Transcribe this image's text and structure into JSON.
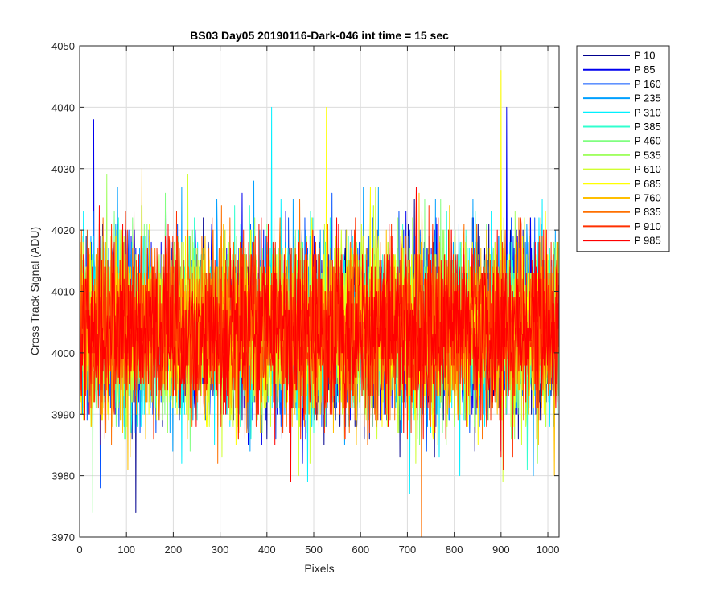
{
  "chart_data": {
    "type": "line",
    "title": "BS03 Day05 20190116-Dark-046 int time = 15 sec",
    "xlabel": "Pixels",
    "ylabel": "Cross Track Signal (ADU)",
    "xlim": [
      0,
      1024
    ],
    "ylim": [
      3970,
      4050
    ],
    "xticks": [
      0,
      100,
      200,
      300,
      400,
      500,
      600,
      700,
      800,
      900,
      1000
    ],
    "yticks": [
      3970,
      3980,
      3990,
      4000,
      4010,
      4020,
      4030,
      4040,
      4050
    ],
    "grid": true,
    "legend_position": "outside-top-right",
    "series_mean": 4004,
    "series_range_typical": [
      3985,
      4026
    ],
    "extremes": [
      {
        "series": "P 685",
        "x": 900,
        "y": 4046
      },
      {
        "series": "P 85",
        "x": 912,
        "y": 4040
      },
      {
        "series": "P 310",
        "x": 410,
        "y": 4040
      },
      {
        "series": "P 685",
        "x": 527,
        "y": 4040
      },
      {
        "series": "P 85",
        "x": 30,
        "y": 4038
      },
      {
        "series": "P 835",
        "x": 730,
        "y": 3970
      },
      {
        "series": "P 10",
        "x": 120,
        "y": 3974
      },
      {
        "series": "P 460",
        "x": 28,
        "y": 3974
      }
    ],
    "series": [
      {
        "name": "P 10",
        "color": "#00008f"
      },
      {
        "name": "P 85",
        "color": "#0000ef"
      },
      {
        "name": "P 160",
        "color": "#0050ff"
      },
      {
        "name": "P 235",
        "color": "#00a0ff"
      },
      {
        "name": "P 310",
        "color": "#00f0ff"
      },
      {
        "name": "P 385",
        "color": "#30ffcf"
      },
      {
        "name": "P 460",
        "color": "#80ff80"
      },
      {
        "name": "P 535",
        "color": "#a0ff60"
      },
      {
        "name": "P 610",
        "color": "#d0ff30"
      },
      {
        "name": "P 685",
        "color": "#ffff00"
      },
      {
        "name": "P 760",
        "color": "#ffbf00"
      },
      {
        "name": "P 835",
        "color": "#ff7000"
      },
      {
        "name": "P 910",
        "color": "#ff3000"
      },
      {
        "name": "P 985",
        "color": "#ff0000"
      }
    ]
  }
}
